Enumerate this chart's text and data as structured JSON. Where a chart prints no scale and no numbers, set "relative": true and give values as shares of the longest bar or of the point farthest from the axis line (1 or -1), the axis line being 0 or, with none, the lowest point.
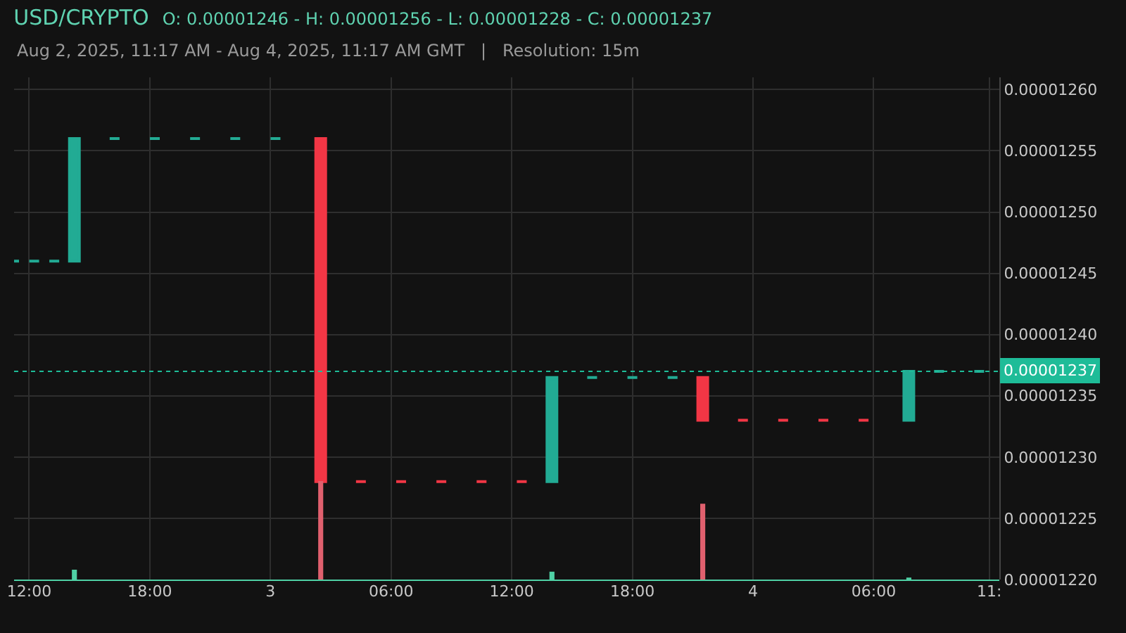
{
  "chart_data": [
    {
      "type": "candlestick",
      "title": "USD/CRYPTO",
      "subtitle": "Aug 2, 2025, 11:17 AM - Aug 4, 2025, 11:17 AM GMT   |   Resolution: 15m",
      "annotations": [
        "O: 0.00001246 - H: 0.00001256 - L: 0.00001228 - C: 0.00001237"
      ],
      "x": [
        "2025-08-02T11:15",
        "2025-08-02T12:15",
        "2025-08-02T13:15",
        "2025-08-02T14:15",
        "2025-08-02T16:15",
        "2025-08-02T18:15",
        "2025-08-02T20:15",
        "2025-08-02T22:15",
        "2025-08-03T00:15",
        "2025-08-03T02:30",
        "2025-08-03T04:30",
        "2025-08-03T06:30",
        "2025-08-03T08:30",
        "2025-08-03T10:30",
        "2025-08-03T12:30",
        "2025-08-03T14:00",
        "2025-08-03T16:00",
        "2025-08-03T18:00",
        "2025-08-03T20:00",
        "2025-08-03T21:30",
        "2025-08-03T23:30",
        "2025-08-04T01:30",
        "2025-08-04T03:30",
        "2025-08-04T05:30",
        "2025-08-04T07:45",
        "2025-08-04T09:15",
        "2025-08-04T11:15"
      ],
      "ohlc": [
        [
          1.246e-05,
          1.246e-05,
          1.246e-05,
          1.246e-05
        ],
        [
          1.246e-05,
          1.246e-05,
          1.246e-05,
          1.246e-05
        ],
        [
          1.246e-05,
          1.246e-05,
          1.246e-05,
          1.246e-05
        ],
        [
          1.246e-05,
          1.256e-05,
          1.246e-05,
          1.256e-05
        ],
        [
          1.256e-05,
          1.256e-05,
          1.256e-05,
          1.256e-05
        ],
        [
          1.256e-05,
          1.256e-05,
          1.256e-05,
          1.256e-05
        ],
        [
          1.256e-05,
          1.256e-05,
          1.256e-05,
          1.256e-05
        ],
        [
          1.256e-05,
          1.256e-05,
          1.256e-05,
          1.256e-05
        ],
        [
          1.256e-05,
          1.256e-05,
          1.256e-05,
          1.256e-05
        ],
        [
          1.256e-05,
          1.256e-05,
          1.228e-05,
          1.228e-05
        ],
        [
          1.228e-05,
          1.228e-05,
          1.228e-05,
          1.228e-05
        ],
        [
          1.228e-05,
          1.228e-05,
          1.228e-05,
          1.228e-05
        ],
        [
          1.228e-05,
          1.228e-05,
          1.228e-05,
          1.228e-05
        ],
        [
          1.228e-05,
          1.228e-05,
          1.228e-05,
          1.228e-05
        ],
        [
          1.228e-05,
          1.228e-05,
          1.228e-05,
          1.228e-05
        ],
        [
          1.228e-05,
          1.2365e-05,
          1.228e-05,
          1.2365e-05
        ],
        [
          1.2365e-05,
          1.2365e-05,
          1.2365e-05,
          1.2365e-05
        ],
        [
          1.2365e-05,
          1.2365e-05,
          1.2365e-05,
          1.2365e-05
        ],
        [
          1.2365e-05,
          1.2365e-05,
          1.2365e-05,
          1.2365e-05
        ],
        [
          1.2365e-05,
          1.2365e-05,
          1.233e-05,
          1.233e-05
        ],
        [
          1.233e-05,
          1.233e-05,
          1.233e-05,
          1.233e-05
        ],
        [
          1.233e-05,
          1.233e-05,
          1.233e-05,
          1.233e-05
        ],
        [
          1.233e-05,
          1.233e-05,
          1.233e-05,
          1.233e-05
        ],
        [
          1.233e-05,
          1.233e-05,
          1.233e-05,
          1.233e-05
        ],
        [
          1.233e-05,
          1.237e-05,
          1.233e-05,
          1.237e-05
        ],
        [
          1.237e-05,
          1.237e-05,
          1.237e-05,
          1.237e-05
        ],
        [
          1.237e-05,
          1.237e-05,
          1.237e-05,
          1.237e-05
        ]
      ],
      "xlim": [
        "2025-08-02T11:15",
        "2025-08-04T12:15"
      ],
      "xticks": [
        {
          "value": "2025-08-02T12:00",
          "label": "12:00"
        },
        {
          "value": "2025-08-02T18:00",
          "label": "18:00"
        },
        {
          "value": "2025-08-03T00:00",
          "label": "3"
        },
        {
          "value": "2025-08-03T06:00",
          "label": "06:00"
        },
        {
          "value": "2025-08-03T12:00",
          "label": "12:00"
        },
        {
          "value": "2025-08-03T18:00",
          "label": "18:00"
        },
        {
          "value": "2025-08-04T00:00",
          "label": "4"
        },
        {
          "value": "2025-08-04T06:00",
          "label": "06:00"
        },
        {
          "value": "2025-08-04T11:45",
          "label": "11:"
        }
      ],
      "ylim": [
        1.22e-05,
        1.261e-05
      ],
      "yticks": [
        {
          "value": 1.22e-05,
          "label": "0.00001220"
        },
        {
          "value": 1.225e-05,
          "label": "0.00001225"
        },
        {
          "value": 1.23e-05,
          "label": "0.00001230"
        },
        {
          "value": 1.235e-05,
          "label": "0.00001235"
        },
        {
          "value": 1.24e-05,
          "label": "0.00001240"
        },
        {
          "value": 1.245e-05,
          "label": "0.00001245"
        },
        {
          "value": 1.25e-05,
          "label": "0.00001250"
        },
        {
          "value": 1.255e-05,
          "label": "0.00001255"
        },
        {
          "value": 1.26e-05,
          "label": "0.00001260"
        }
      ],
      "ref_lines": [
        {
          "axis": "y",
          "value": 1.237e-05,
          "label": "0.00001237",
          "color": "#1ebc98",
          "line_style": "dotted"
        }
      ],
      "grid": true
    },
    {
      "type": "bar",
      "relative": true,
      "x": [
        "2025-08-02T14:15",
        "2025-08-03T02:30",
        "2025-08-03T14:00",
        "2025-08-03T21:30",
        "2025-08-04T07:45"
      ],
      "values": [
        0.1,
        1,
        0.08,
        0.77,
        0.02
      ],
      "colors": [
        "#4fd1a5",
        "#e0606e",
        "#4fd1a5",
        "#e0606e",
        "#4fd1a5"
      ],
      "xlim": [
        "2025-08-02T11:15",
        "2025-08-04T12:15"
      ]
    }
  ]
}
